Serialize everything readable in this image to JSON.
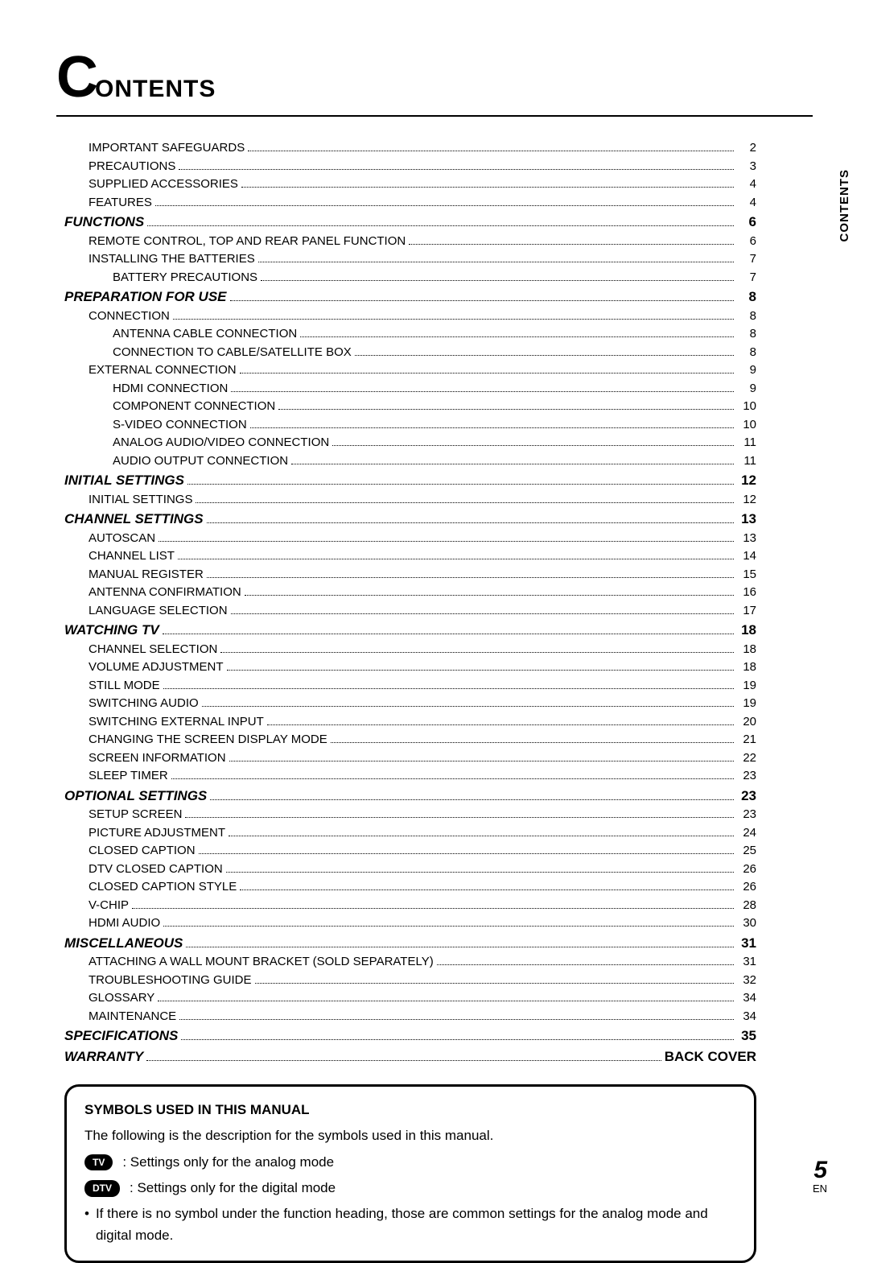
{
  "title": {
    "bigLetter": "C",
    "rest": "ONTENTS"
  },
  "sideTab": "CONTENTS",
  "footer": {
    "pageNumber": "5",
    "lang": "EN"
  },
  "toc": [
    {
      "level": 1,
      "label": "IMPORTANT SAFEGUARDS",
      "page": "2"
    },
    {
      "level": 1,
      "label": "PRECAUTIONS",
      "page": "3"
    },
    {
      "level": 1,
      "label": "SUPPLIED ACCESSORIES",
      "page": "4"
    },
    {
      "level": 1,
      "label": "FEATURES",
      "page": "4"
    },
    {
      "level": 0,
      "label": "FUNCTIONS",
      "page": "6"
    },
    {
      "level": 1,
      "label": "REMOTE CONTROL, TOP AND REAR PANEL FUNCTION",
      "page": "6"
    },
    {
      "level": 1,
      "label": "INSTALLING THE BATTERIES",
      "page": "7"
    },
    {
      "level": 2,
      "label": "BATTERY PRECAUTIONS",
      "page": "7"
    },
    {
      "level": 0,
      "label": "PREPARATION FOR USE",
      "page": "8"
    },
    {
      "level": 1,
      "label": "CONNECTION",
      "page": "8"
    },
    {
      "level": 2,
      "label": "ANTENNA CABLE CONNECTION",
      "page": "8"
    },
    {
      "level": 2,
      "label": "CONNECTION TO CABLE/SATELLITE BOX",
      "page": "8"
    },
    {
      "level": 1,
      "label": "EXTERNAL CONNECTION",
      "page": "9"
    },
    {
      "level": 2,
      "label": "HDMI CONNECTION",
      "page": "9"
    },
    {
      "level": 2,
      "label": "COMPONENT CONNECTION",
      "page": "10"
    },
    {
      "level": 2,
      "label": "S-VIDEO CONNECTION",
      "page": "10"
    },
    {
      "level": 2,
      "label": "ANALOG AUDIO/VIDEO CONNECTION",
      "page": "11"
    },
    {
      "level": 2,
      "label": "AUDIO OUTPUT CONNECTION",
      "page": "11"
    },
    {
      "level": 0,
      "label": "INITIAL SETTINGS",
      "page": "12"
    },
    {
      "level": 1,
      "label": "INITIAL SETTINGS",
      "page": "12"
    },
    {
      "level": 0,
      "label": "CHANNEL SETTINGS",
      "page": "13"
    },
    {
      "level": 1,
      "label": "AUTOSCAN",
      "page": "13"
    },
    {
      "level": 1,
      "label": "CHANNEL LIST",
      "page": "14"
    },
    {
      "level": 1,
      "label": "MANUAL REGISTER",
      "page": "15"
    },
    {
      "level": 1,
      "label": "ANTENNA CONFIRMATION",
      "page": "16"
    },
    {
      "level": 1,
      "label": "LANGUAGE SELECTION",
      "page": "17"
    },
    {
      "level": 0,
      "label": "WATCHING TV",
      "page": "18"
    },
    {
      "level": 1,
      "label": "CHANNEL SELECTION",
      "page": "18"
    },
    {
      "level": 1,
      "label": "VOLUME ADJUSTMENT",
      "page": "18"
    },
    {
      "level": 1,
      "label": "STILL MODE",
      "page": "19"
    },
    {
      "level": 1,
      "label": "SWITCHING AUDIO",
      "page": "19"
    },
    {
      "level": 1,
      "label": "SWITCHING EXTERNAL INPUT",
      "page": "20"
    },
    {
      "level": 1,
      "label": "CHANGING THE SCREEN DISPLAY MODE",
      "page": "21"
    },
    {
      "level": 1,
      "label": "SCREEN INFORMATION",
      "page": "22"
    },
    {
      "level": 1,
      "label": "SLEEP TIMER",
      "page": "23"
    },
    {
      "level": 0,
      "label": "OPTIONAL SETTINGS",
      "page": "23"
    },
    {
      "level": 1,
      "label": "SETUP SCREEN",
      "page": "23"
    },
    {
      "level": 1,
      "label": "PICTURE ADJUSTMENT",
      "page": "24"
    },
    {
      "level": 1,
      "label": "CLOSED CAPTION",
      "page": "25"
    },
    {
      "level": 1,
      "label": "DTV CLOSED CAPTION",
      "page": "26"
    },
    {
      "level": 1,
      "label": "CLOSED CAPTION STYLE",
      "page": "26"
    },
    {
      "level": 1,
      "label": "V-CHIP",
      "page": "28"
    },
    {
      "level": 1,
      "label": "HDMI AUDIO",
      "page": "30"
    },
    {
      "level": 0,
      "label": "MISCELLANEOUS",
      "page": "31"
    },
    {
      "level": 1,
      "label": "ATTACHING A WALL MOUNT BRACKET (SOLD SEPARATELY)",
      "page": "31"
    },
    {
      "level": 1,
      "label": "TROUBLESHOOTING GUIDE",
      "page": "32"
    },
    {
      "level": 1,
      "label": "GLOSSARY",
      "page": "34"
    },
    {
      "level": 1,
      "label": "MAINTENANCE",
      "page": "34"
    },
    {
      "level": 0,
      "label": "SPECIFICATIONS",
      "page": "35"
    },
    {
      "level": 0,
      "label": "WARRANTY",
      "page": "BACK COVER",
      "warranty": true
    }
  ],
  "symbols": {
    "heading": "SYMBOLS USED IN THIS MANUAL",
    "intro": "The following is the description for the symbols used in this manual.",
    "rows": [
      {
        "pill": "TV",
        "text": ": Settings only for the analog mode"
      },
      {
        "pill": "DTV",
        "text": ": Settings only for the digital mode"
      }
    ],
    "bullet": "If there is no symbol under the function heading, those are common settings for the analog mode and digital mode."
  }
}
